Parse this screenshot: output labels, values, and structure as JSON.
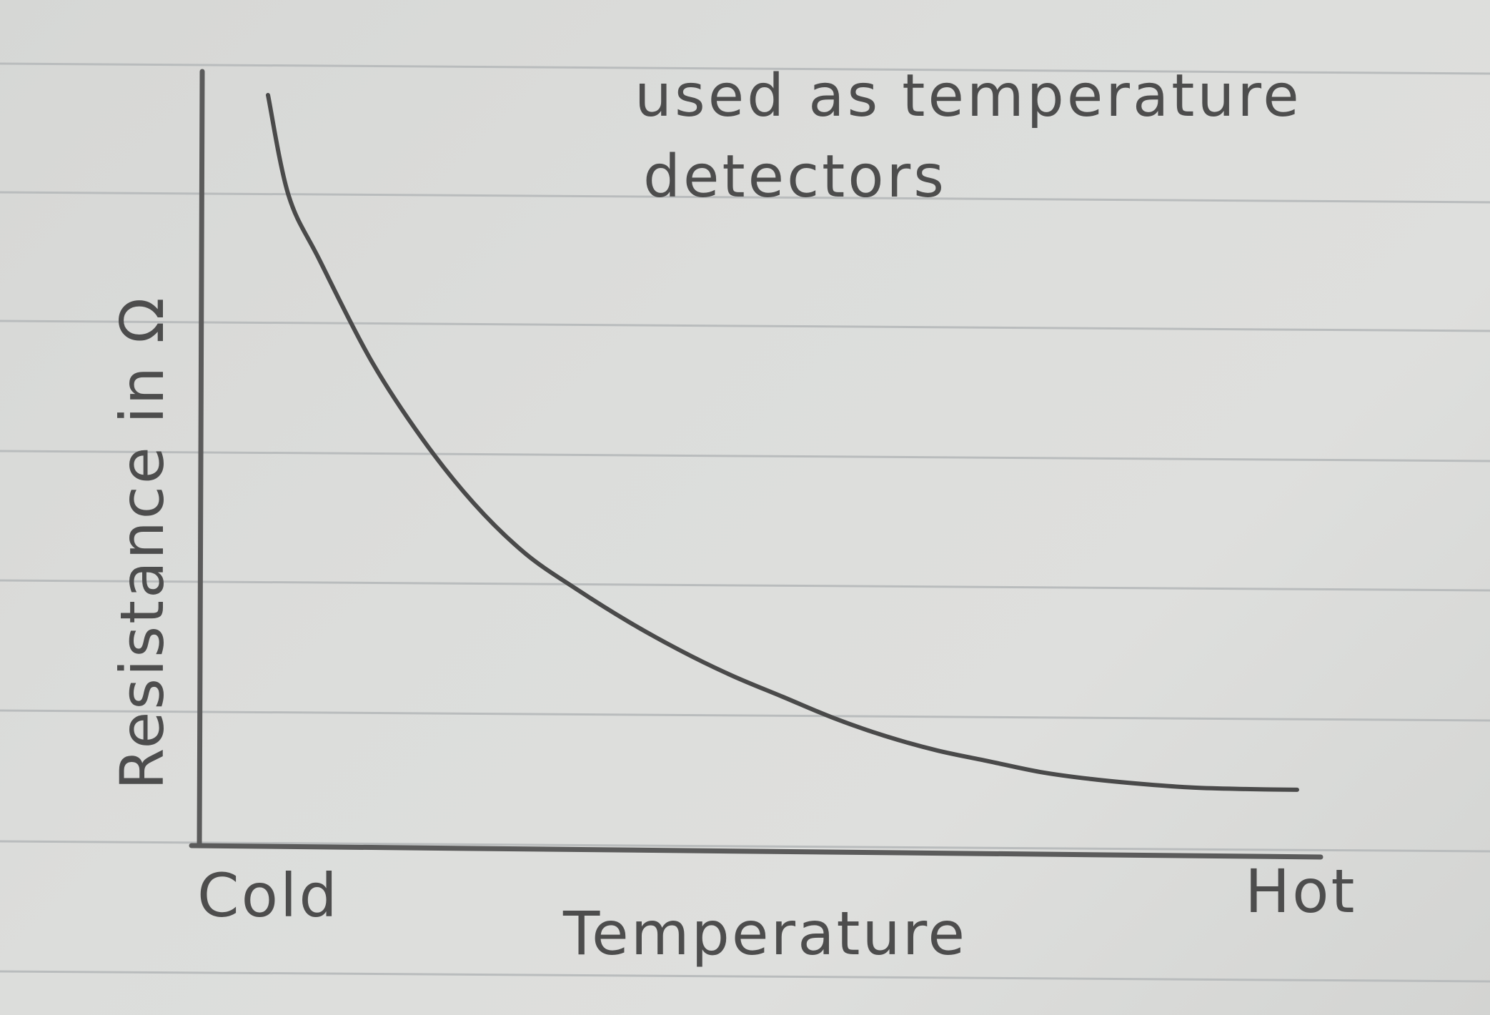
{
  "chart_data": {
    "type": "line",
    "title": "",
    "xlabel": "Temperature",
    "ylabel": "Resistance in Ω",
    "x_ticks": [
      "Cold",
      "Hot"
    ],
    "annotation": [
      "used as temperature",
      "detectors"
    ],
    "grid": "ruled paper lines",
    "series": [
      {
        "x": [
          0.0,
          0.02,
          0.05,
          0.1,
          0.15,
          0.2,
          0.25,
          0.3,
          0.35,
          0.4,
          0.45,
          0.5,
          0.55,
          0.6,
          0.65,
          0.7,
          0.75,
          0.8,
          0.85,
          0.9,
          0.95,
          1.0
        ],
        "values": [
          1.0,
          0.86,
          0.77,
          0.63,
          0.52,
          0.43,
          0.36,
          0.31,
          0.265,
          0.225,
          0.19,
          0.16,
          0.13,
          0.105,
          0.085,
          0.07,
          0.055,
          0.045,
          0.038,
          0.033,
          0.031,
          0.03
        ]
      }
    ],
    "xlim": [
      0,
      1
    ],
    "ylim": [
      0,
      1
    ],
    "colors": {
      "ink": "#4a4a4a",
      "ruled_lines": "#b9bcbd",
      "paper": "#dcdddb"
    }
  }
}
